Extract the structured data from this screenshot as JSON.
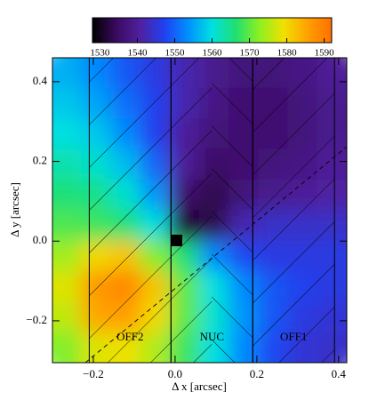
{
  "chart_data": {
    "type": "heatmap",
    "xlabel": "Δ x [arcsec]",
    "ylabel": "Δ y [arcsec]",
    "xlim": [
      -0.3,
      0.42
    ],
    "ylim": [
      -0.305,
      0.46
    ],
    "xticks": [
      {
        "value": -0.2,
        "label": "−0.2"
      },
      {
        "value": 0.0,
        "label": "0.0"
      },
      0.2,
      0.4
    ],
    "yticks": [
      {
        "value": -0.2,
        "label": "−0.2"
      },
      {
        "value": 0.0,
        "label": "0.0"
      },
      0.2,
      0.4
    ],
    "colormap": [
      "#000000",
      "#3a0a60",
      "#5020a0",
      "#2040f0",
      "#0090ff",
      "#00e0e0",
      "#20e070",
      "#90f020",
      "#f0e000",
      "#ffa000",
      "#ff7000"
    ],
    "clim": [
      1528,
      1592
    ],
    "colorbar_ticks": [
      1530,
      1540,
      1550,
      1560,
      1570,
      1580,
      1590
    ],
    "values": [
      [
        1556,
        1553,
        1549,
        1546,
        1542,
        1539,
        1537,
        1537,
        1538,
        1540
      ],
      [
        1558,
        1555,
        1551,
        1547,
        1542,
        1538,
        1536,
        1536,
        1537,
        1539
      ],
      [
        1560,
        1558,
        1553,
        1547,
        1540,
        1537,
        1536,
        1536,
        1537,
        1539
      ],
      [
        1563,
        1561,
        1557,
        1550,
        1540,
        1535,
        1536,
        1537,
        1538,
        1540
      ],
      [
        1566,
        1565,
        1561,
        1554,
        1536,
        1533,
        1537,
        1539,
        1540,
        1541
      ],
      [
        1569,
        1568,
        1566,
        1560,
        1531,
        1533,
        1542,
        1544,
        1544,
        1544
      ],
      [
        1574,
        1580,
        1582,
        1572,
        1566,
        1553,
        1548,
        1546,
        1546,
        1546
      ],
      [
        1578,
        1587,
        1589,
        1582,
        1570,
        1560,
        1553,
        1549,
        1547,
        1546
      ],
      [
        1576,
        1585,
        1586,
        1580,
        1570,
        1561,
        1554,
        1549,
        1546,
        1545
      ],
      [
        1572,
        1578,
        1579,
        1575,
        1568,
        1560,
        1553,
        1548,
        1545,
        1544
      ]
    ],
    "regions": [
      {
        "label": "OFF2",
        "x": [
          -0.21,
          -0.01
        ]
      },
      {
        "label": "NUC",
        "x": [
          -0.01,
          0.19
        ]
      },
      {
        "label": "OFF1",
        "x": [
          0.19,
          0.39
        ]
      }
    ]
  }
}
